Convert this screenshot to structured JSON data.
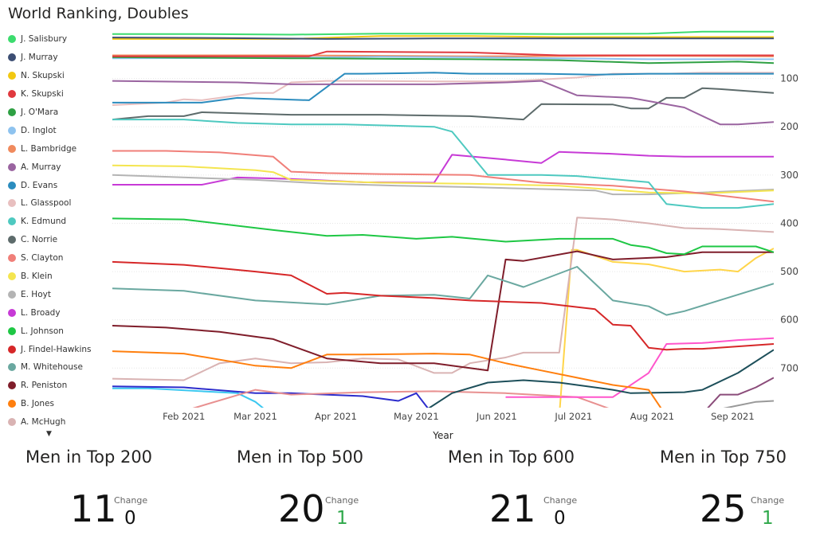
{
  "title": "World Ranking, Doubles",
  "legend_more_icon": "triangle-down-icon",
  "chart_data": {
    "type": "line",
    "title": "World Ranking, Doubles",
    "xlabel": "Year",
    "ylabel": "",
    "x_ticks": [
      "Feb 2021",
      "Mar 2021",
      "Apr 2021",
      "May 2021",
      "Jun 2021",
      "Jul 2021",
      "Aug 2021",
      "Sep 2021"
    ],
    "x_tick_weeks": [
      4,
      8,
      12.5,
      17,
      21.5,
      25.8,
      30.2,
      34.7
    ],
    "y_ticks": [
      100,
      200,
      300,
      400,
      500,
      600,
      700
    ],
    "ylim": [
      0,
      782
    ],
    "xlim": [
      0,
      37
    ],
    "y_reversed": true,
    "grid": true,
    "legend_position": "left",
    "series": [
      {
        "name": "J. Salisbury",
        "color": "#3cdc6e",
        "x": [
          0,
          5,
          10,
          15,
          20,
          25,
          30,
          33,
          37
        ],
        "values": [
          8,
          8,
          9,
          7,
          7,
          8,
          7,
          3,
          3
        ]
      },
      {
        "name": "J. Murray",
        "color": "#3c4e73",
        "x": [
          0,
          6,
          12,
          18,
          24,
          30,
          37
        ],
        "values": [
          15,
          16,
          18,
          17,
          17,
          17,
          17
        ]
      },
      {
        "name": "N. Skupski",
        "color": "#f2c811",
        "x": [
          0,
          10,
          15,
          20,
          25,
          30,
          37
        ],
        "values": [
          18,
          18,
          12,
          12,
          14,
          14,
          14
        ]
      },
      {
        "name": "K. Skupski",
        "color": "#e0393e",
        "x": [
          0,
          11,
          12,
          20,
          25,
          30,
          37
        ],
        "values": [
          54,
          54,
          44,
          46,
          52,
          52,
          52
        ]
      },
      {
        "name": "J. O'Mara",
        "color": "#2ea043",
        "x": [
          0,
          10,
          20,
          25,
          30,
          35,
          37
        ],
        "values": [
          56,
          58,
          60,
          62,
          68,
          65,
          68
        ]
      },
      {
        "name": "D. Inglot",
        "color": "#8ec3ef",
        "x": [
          0,
          10,
          15,
          20,
          25,
          30,
          37
        ],
        "values": [
          58,
          57,
          55,
          56,
          58,
          60,
          60
        ]
      },
      {
        "name": "L. Bambridge",
        "color": "#f08a5d",
        "x": [
          0,
          10,
          20,
          30,
          37
        ],
        "values": [
          52,
          52,
          54,
          53,
          54
        ]
      },
      {
        "name": "A. Murray",
        "color": "#9a64a0",
        "x": [
          0,
          7,
          10,
          18,
          22,
          24,
          26,
          29,
          32,
          34,
          35,
          37
        ],
        "values": [
          105,
          108,
          112,
          112,
          108,
          105,
          135,
          140,
          160,
          195,
          195,
          190
        ]
      },
      {
        "name": "D. Evans",
        "color": "#2b8cbe",
        "x": [
          0,
          5,
          7,
          11,
          13,
          14,
          18,
          20,
          24,
          27,
          30,
          37
        ],
        "values": [
          150,
          150,
          140,
          145,
          90,
          90,
          88,
          90,
          90,
          92,
          90,
          90
        ]
      },
      {
        "name": "L. Glasspool",
        "color": "#e8bfbf",
        "x": [
          0,
          3,
          4,
          5,
          8,
          9,
          10,
          12,
          14,
          18,
          22,
          26,
          28,
          31,
          33,
          37
        ],
        "values": [
          155,
          150,
          143,
          145,
          130,
          130,
          108,
          105,
          105,
          106,
          106,
          98,
          90,
          90,
          88,
          88
        ]
      },
      {
        "name": "K. Edmund",
        "color": "#4ec9c0",
        "x": [
          0,
          4,
          7,
          10,
          13,
          16,
          18,
          19,
          21,
          24,
          26,
          30,
          31,
          33,
          35,
          37
        ],
        "values": [
          185,
          185,
          192,
          195,
          195,
          198,
          200,
          210,
          300,
          300,
          302,
          315,
          360,
          368,
          368,
          360
        ]
      },
      {
        "name": "C. Norrie",
        "color": "#5d6b6b",
        "x": [
          0,
          2,
          4,
          5,
          10,
          15,
          20,
          23,
          24,
          28,
          29,
          30,
          31,
          32,
          33,
          34,
          37
        ],
        "values": [
          185,
          178,
          178,
          170,
          175,
          175,
          178,
          185,
          153,
          154,
          162,
          162,
          140,
          140,
          120,
          122,
          130
        ]
      },
      {
        "name": "S. Clayton",
        "color": "#f07f79",
        "x": [
          0,
          3,
          6,
          9,
          10,
          12,
          15,
          20,
          24,
          28,
          32,
          37
        ],
        "values": [
          250,
          250,
          253,
          262,
          293,
          296,
          298,
          300,
          316,
          322,
          334,
          355
        ]
      },
      {
        "name": "B. Klein",
        "color": "#f4e54f",
        "x": [
          0,
          4,
          8,
          9,
          10,
          15,
          20,
          25,
          30,
          33,
          37
        ],
        "values": [
          280,
          282,
          290,
          294,
          310,
          316,
          318,
          322,
          336,
          338,
          332
        ]
      },
      {
        "name": "E. Hoyt",
        "color": "#b4b4b4",
        "x": [
          0,
          8,
          12,
          16,
          20,
          25,
          27,
          28,
          30,
          33,
          37
        ],
        "values": [
          300,
          310,
          318,
          322,
          325,
          330,
          332,
          340,
          340,
          336,
          330
        ]
      },
      {
        "name": "L. Broady",
        "color": "#c73ad6",
        "x": [
          0,
          5,
          7,
          10,
          14,
          18,
          19,
          22,
          24,
          25,
          28,
          30,
          32,
          37
        ],
        "values": [
          320,
          320,
          305,
          308,
          315,
          316,
          258,
          268,
          275,
          252,
          256,
          260,
          262,
          262
        ]
      },
      {
        "name": "L. Johnson",
        "color": "#1ec744",
        "x": [
          0,
          4,
          9,
          12,
          14,
          17,
          19,
          22,
          25,
          28,
          29,
          30,
          31,
          32,
          33,
          36,
          37
        ],
        "values": [
          390,
          392,
          414,
          426,
          424,
          432,
          428,
          438,
          432,
          432,
          445,
          450,
          462,
          464,
          448,
          448,
          460
        ]
      },
      {
        "name": "J. Findel-Hawkins",
        "color": "#d62728",
        "x": [
          0,
          4,
          8,
          10,
          12,
          13,
          15,
          18,
          20,
          24,
          27,
          28,
          29,
          30,
          31,
          32,
          33,
          37
        ],
        "values": [
          480,
          486,
          500,
          508,
          546,
          544,
          550,
          555,
          560,
          565,
          578,
          610,
          612,
          658,
          662,
          660,
          660,
          650
        ]
      },
      {
        "name": "M. Whitehouse",
        "color": "#6aa8a0",
        "x": [
          0,
          4,
          8,
          12,
          15,
          18,
          20,
          21,
          23,
          26,
          28,
          30,
          31,
          32,
          37
        ],
        "values": [
          535,
          540,
          560,
          568,
          550,
          548,
          556,
          508,
          532,
          490,
          560,
          572,
          590,
          582,
          525
        ]
      },
      {
        "name": "R. Peniston",
        "color": "#7f1d2a",
        "x": [
          0,
          3,
          6,
          9,
          12,
          15,
          18,
          20,
          21,
          22,
          23,
          26,
          28,
          31,
          33,
          37
        ],
        "values": [
          612,
          616,
          625,
          640,
          680,
          690,
          690,
          700,
          705,
          475,
          478,
          458,
          475,
          470,
          460,
          460
        ]
      },
      {
        "name": "B. Jones",
        "color": "#ff7f0e",
        "x": [
          0,
          4,
          8,
          10,
          12,
          14,
          18,
          20,
          22,
          24,
          26,
          28,
          30,
          31,
          37
        ],
        "values": [
          665,
          670,
          695,
          700,
          672,
          672,
          670,
          672,
          690,
          705,
          720,
          735,
          745,
          800,
          800
        ]
      },
      {
        "name": "A. McHugh",
        "color": "#d9b3b3",
        "x": [
          0,
          4,
          6,
          8,
          10,
          12,
          14,
          16,
          18,
          19,
          20,
          22,
          23,
          25,
          26,
          28,
          30,
          32,
          34,
          37
        ],
        "values": [
          722,
          725,
          690,
          680,
          690,
          688,
          680,
          682,
          710,
          710,
          690,
          678,
          668,
          668,
          388,
          392,
          400,
          410,
          412,
          418
        ]
      }
    ],
    "extra_lines": [
      {
        "color": "#3cc8f0",
        "x": [
          0,
          2,
          5,
          7,
          8,
          9
        ],
        "values": [
          742,
          742,
          748,
          752,
          770,
          800
        ]
      },
      {
        "color": "#2c2ccc",
        "x": [
          0,
          4,
          8,
          10,
          14,
          16,
          17,
          18,
          19
        ],
        "values": [
          738,
          740,
          752,
          752,
          758,
          768,
          752,
          800,
          800
        ]
      },
      {
        "color": "#e89090",
        "x": [
          3,
          8,
          10,
          14,
          18,
          22,
          26,
          29,
          30,
          37
        ],
        "values": [
          800,
          745,
          755,
          750,
          748,
          752,
          760,
          800,
          800,
          800
        ]
      },
      {
        "color": "#ffd54a",
        "x": [
          25,
          25.7,
          26,
          28,
          30,
          32,
          34,
          35,
          36,
          37
        ],
        "values": [
          800,
          455,
          455,
          480,
          485,
          500,
          496,
          500,
          472,
          452
        ]
      },
      {
        "color": "#ff55cc",
        "x": [
          22,
          26,
          28,
          30,
          31,
          33,
          35,
          37
        ],
        "values": [
          760,
          760,
          760,
          710,
          650,
          648,
          642,
          638
        ]
      },
      {
        "color": "#1d4f5a",
        "x": [
          17,
          19,
          21,
          23,
          25,
          28,
          29,
          32,
          33,
          35,
          37
        ],
        "values": [
          800,
          752,
          730,
          725,
          730,
          745,
          752,
          750,
          745,
          710,
          662
        ]
      },
      {
        "color": "#8b4c7a",
        "x": [
          32,
          33,
          34,
          35,
          36,
          37
        ],
        "values": [
          800,
          795,
          755,
          755,
          740,
          720
        ]
      },
      {
        "color": "#999999",
        "x": [
          32,
          34,
          36,
          37
        ],
        "values": [
          795,
          785,
          770,
          768
        ]
      }
    ]
  },
  "kpis": [
    {
      "label": "Men in Top 200",
      "value": "11",
      "change_label": "Change",
      "change": "0",
      "change_color": "#111111"
    },
    {
      "label": "Men in Top 500",
      "value": "20",
      "change_label": "Change",
      "change": "1",
      "change_color": "#2ea84a"
    },
    {
      "label": "Men in Top 600",
      "value": "21",
      "change_label": "Change",
      "change": "0",
      "change_color": "#111111"
    },
    {
      "label": "Men in Top 750",
      "value": "25",
      "change_label": "Change",
      "change": "1",
      "change_color": "#2ea84a"
    }
  ]
}
